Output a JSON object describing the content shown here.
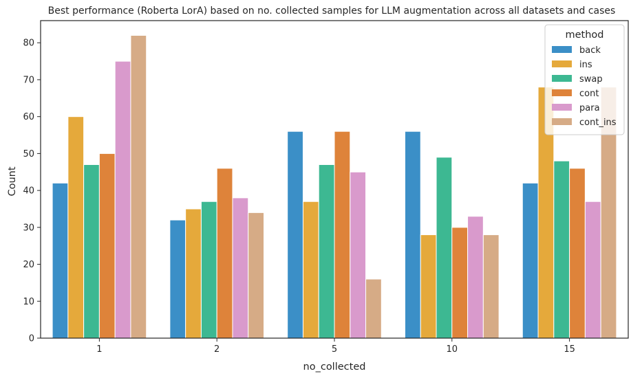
{
  "chart_data": {
    "type": "bar",
    "title": "Best performance (Roberta LorA) based on no. collected samples for LLM augmentation across all datasets and cases",
    "xlabel": "no_collected",
    "ylabel": "Count",
    "categories": [
      "1",
      "2",
      "5",
      "10",
      "15"
    ],
    "ylim": [
      0,
      86
    ],
    "yticks": [
      0,
      10,
      20,
      30,
      40,
      50,
      60,
      70,
      80
    ],
    "grid": false,
    "legend": {
      "title": "method",
      "position": "top-right"
    },
    "series": [
      {
        "name": "back",
        "color": "#3b8fc7",
        "values": [
          42,
          32,
          56,
          56,
          42
        ]
      },
      {
        "name": "ins",
        "color": "#e5a93b",
        "values": [
          60,
          35,
          37,
          28,
          68
        ]
      },
      {
        "name": "swap",
        "color": "#3db892",
        "values": [
          47,
          37,
          47,
          49,
          48
        ]
      },
      {
        "name": "cont",
        "color": "#de833a",
        "values": [
          50,
          46,
          56,
          30,
          46
        ]
      },
      {
        "name": "para",
        "color": "#d99acc",
        "values": [
          75,
          38,
          45,
          33,
          37
        ]
      },
      {
        "name": "cont_ins",
        "color": "#d6ab86",
        "values": [
          82,
          34,
          16,
          28,
          68
        ]
      }
    ]
  }
}
